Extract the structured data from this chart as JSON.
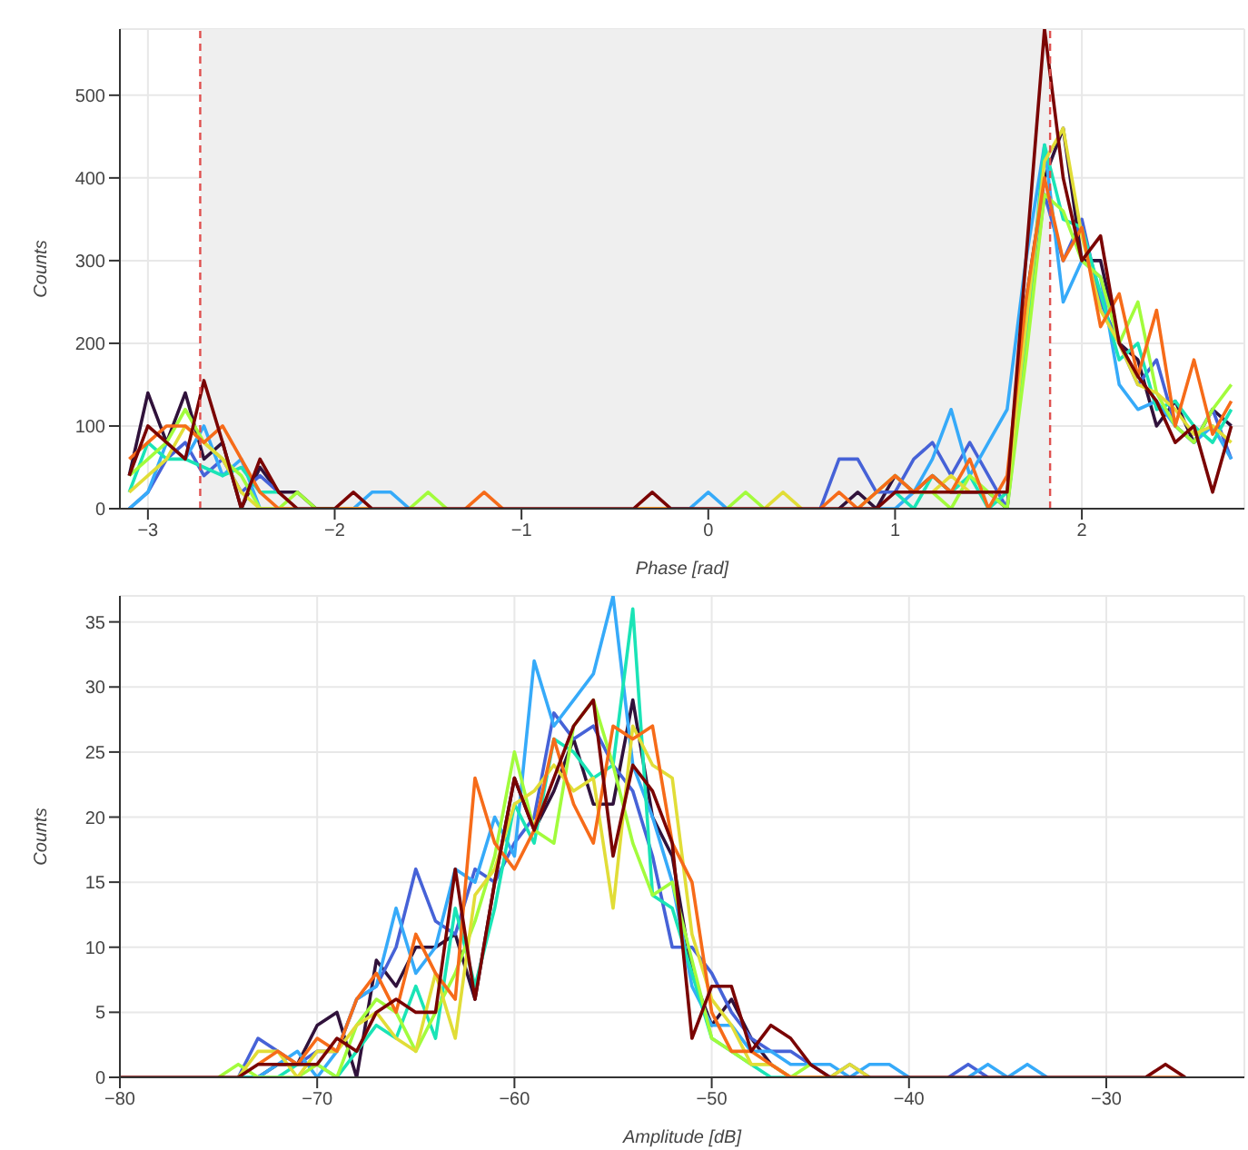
{
  "chart_data": [
    {
      "type": "line",
      "xlabel": "Phase [rad]",
      "ylabel": "Counts",
      "xlim": [
        -3.15,
        2.87
      ],
      "ylim": [
        0,
        580
      ],
      "xticks": [
        -3,
        -2,
        -1,
        0,
        1,
        2
      ],
      "yticks": [
        0,
        100,
        200,
        300,
        400,
        500
      ],
      "grid": true,
      "bands": [
        {
          "axis": "x",
          "from": -2.72,
          "to": 1.83,
          "color": "#efefef"
        }
      ],
      "ref_lines": [
        {
          "axis": "x",
          "value": -2.72,
          "color": "#e0504f",
          "line_style": "dashed"
        },
        {
          "axis": "x",
          "value": 1.83,
          "color": "#e0504f",
          "line_style": "dashed"
        }
      ],
      "x": [
        -3.1,
        -3.0,
        -2.9,
        -2.8,
        -2.7,
        -2.6,
        -2.5,
        -2.4,
        -2.3,
        -2.2,
        -2.1,
        -2.0,
        -1.9,
        -1.8,
        -1.7,
        -1.6,
        -1.5,
        -1.4,
        -1.3,
        -1.2,
        -1.1,
        -1.0,
        -0.9,
        -0.8,
        -0.7,
        -0.6,
        -0.5,
        -0.4,
        -0.3,
        -0.2,
        -0.1,
        0.0,
        0.1,
        0.2,
        0.3,
        0.4,
        0.5,
        0.6,
        0.7,
        0.8,
        0.9,
        1.0,
        1.1,
        1.2,
        1.3,
        1.4,
        1.5,
        1.6,
        1.7,
        1.8,
        1.9,
        2.0,
        2.1,
        2.2,
        2.3,
        2.4,
        2.5,
        2.6,
        2.7,
        2.8
      ],
      "series": [
        {
          "color": "#30123b",
          "values": [
            40,
            140,
            80,
            140,
            60,
            80,
            0,
            50,
            20,
            20,
            0,
            0,
            0,
            0,
            null,
            null,
            null,
            null,
            null,
            null,
            null,
            null,
            null,
            null,
            null,
            null,
            null,
            0,
            0,
            0,
            null,
            null,
            null,
            null,
            null,
            null,
            null,
            null,
            0,
            20,
            0,
            40,
            20,
            40,
            20,
            20,
            20,
            0,
            250,
            400,
            460,
            300,
            300,
            200,
            180,
            100,
            130,
            80,
            120,
            100
          ]
        },
        {
          "color": "#4662d7",
          "values": [
            0,
            20,
            60,
            80,
            40,
            60,
            20,
            40,
            20,
            null,
            null,
            0,
            0,
            0,
            null,
            null,
            null,
            null,
            null,
            null,
            null,
            null,
            null,
            null,
            null,
            null,
            null,
            0,
            0,
            0,
            null,
            null,
            null,
            null,
            null,
            null,
            null,
            0,
            60,
            60,
            20,
            20,
            60,
            80,
            40,
            80,
            40,
            0,
            200,
            380,
            300,
            350,
            250,
            200,
            150,
            180,
            100,
            80,
            120,
            60
          ]
        },
        {
          "color": "#36aaf9",
          "values": [
            0,
            20,
            80,
            60,
            100,
            40,
            60,
            0,
            0,
            0,
            null,
            0,
            0,
            20,
            20,
            0,
            null,
            null,
            null,
            null,
            null,
            null,
            null,
            null,
            null,
            null,
            null,
            0,
            0,
            0,
            0,
            20,
            0,
            null,
            null,
            null,
            null,
            null,
            null,
            null,
            0,
            0,
            20,
            60,
            120,
            40,
            80,
            120,
            300,
            440,
            250,
            300,
            280,
            150,
            120,
            130,
            100,
            80,
            100,
            60
          ]
        },
        {
          "color": "#1ae4b6",
          "values": [
            20,
            80,
            60,
            60,
            50,
            40,
            50,
            20,
            20,
            null,
            null,
            0,
            0,
            0,
            null,
            null,
            null,
            null,
            null,
            null,
            null,
            null,
            null,
            null,
            null,
            null,
            null,
            0,
            0,
            0,
            null,
            null,
            null,
            null,
            null,
            null,
            null,
            null,
            null,
            null,
            null,
            20,
            0,
            40,
            20,
            40,
            0,
            20,
            200,
            440,
            350,
            340,
            260,
            180,
            200,
            120,
            130,
            100,
            80,
            120
          ]
        },
        {
          "color": "#a2fc3c",
          "values": [
            40,
            60,
            80,
            120,
            80,
            60,
            40,
            0,
            0,
            20,
            0,
            0,
            0,
            0,
            null,
            0,
            20,
            0,
            null,
            null,
            null,
            null,
            null,
            null,
            null,
            null,
            null,
            0,
            0,
            0,
            null,
            null,
            0,
            20,
            0,
            null,
            null,
            null,
            null,
            0,
            20,
            40,
            20,
            20,
            0,
            40,
            20,
            0,
            180,
            380,
            360,
            300,
            280,
            200,
            250,
            140,
            100,
            80,
            120,
            150
          ]
        },
        {
          "color": "#e1dd37",
          "values": [
            20,
            40,
            60,
            100,
            80,
            60,
            20,
            0,
            0,
            0,
            null,
            0,
            0,
            0,
            null,
            null,
            null,
            null,
            null,
            null,
            null,
            null,
            null,
            null,
            null,
            null,
            null,
            0,
            0,
            0,
            null,
            null,
            null,
            null,
            0,
            20,
            0,
            null,
            null,
            null,
            null,
            null,
            null,
            20,
            40,
            20,
            null,
            20,
            220,
            420,
            460,
            330,
            240,
            200,
            150,
            140,
            120,
            90,
            100,
            80
          ]
        },
        {
          "color": "#f66b19",
          "values": [
            60,
            80,
            100,
            100,
            80,
            100,
            60,
            20,
            0,
            0,
            null,
            0,
            0,
            0,
            null,
            null,
            null,
            null,
            0,
            20,
            0,
            null,
            null,
            null,
            null,
            null,
            null,
            0,
            0,
            0,
            null,
            null,
            null,
            null,
            null,
            null,
            null,
            0,
            20,
            0,
            20,
            40,
            20,
            40,
            20,
            60,
            0,
            40,
            250,
            400,
            300,
            340,
            220,
            260,
            160,
            240,
            100,
            180,
            90,
            130
          ]
        },
        {
          "color": "#7a0403",
          "values": [
            40,
            100,
            80,
            60,
            155,
            80,
            0,
            60,
            20,
            0,
            0,
            0,
            20,
            0,
            0,
            0,
            0,
            0,
            0,
            0,
            0,
            0,
            0,
            0,
            0,
            0,
            0,
            0,
            20,
            0,
            0,
            0,
            0,
            0,
            0,
            0,
            0,
            0,
            0,
            0,
            0,
            20,
            20,
            20,
            20,
            20,
            20,
            20,
            300,
            580,
            400,
            300,
            330,
            200,
            160,
            130,
            80,
            100,
            20,
            100
          ]
        }
      ]
    },
    {
      "type": "line",
      "xlabel": "Amplitude [dB]",
      "ylabel": "Counts",
      "xlim": [
        -80,
        -23
      ],
      "ylim": [
        0,
        37
      ],
      "xticks": [
        -80,
        -70,
        -60,
        -50,
        -40,
        -30
      ],
      "yticks": [
        0,
        5,
        10,
        15,
        20,
        25,
        30,
        35
      ],
      "grid": true,
      "x": [
        -80,
        -79,
        -78,
        -77,
        -76,
        -75,
        -74,
        -73,
        -72,
        -71,
        -70,
        -69,
        -68,
        -67,
        -66,
        -65,
        -64,
        -63,
        -62,
        -61,
        -60,
        -59,
        -58,
        -57,
        -56,
        -55,
        -54,
        -53,
        -52,
        -51,
        -50,
        -49,
        -48,
        -47,
        -46,
        -45,
        -44,
        -43,
        -42,
        -41,
        -40,
        -39,
        -38,
        -37,
        -36,
        -35,
        -34,
        -33,
        -32,
        -31,
        -30,
        -29,
        -28,
        -27,
        -26
      ],
      "series": [
        {
          "color": "#30123b",
          "values": [
            null,
            null,
            null,
            null,
            null,
            null,
            0,
            0,
            1,
            1,
            4,
            5,
            0,
            9,
            7,
            10,
            10,
            11,
            6,
            15,
            23,
            19,
            22,
            26,
            21,
            21,
            29,
            20,
            17,
            8,
            4,
            6,
            3,
            1,
            0,
            0,
            0,
            null,
            null,
            null,
            null,
            null,
            null,
            null,
            null,
            null,
            null,
            null,
            null,
            null,
            null,
            null,
            null,
            null,
            null
          ]
        },
        {
          "color": "#4662d7",
          "values": [
            null,
            null,
            null,
            null,
            null,
            null,
            0,
            3,
            2,
            1,
            2,
            2,
            6,
            7,
            10,
            16,
            12,
            11,
            16,
            15,
            18,
            20,
            28,
            26,
            27,
            24,
            22,
            17,
            10,
            10,
            8,
            5,
            3,
            2,
            2,
            1,
            0,
            1,
            0,
            null,
            null,
            null,
            0,
            1,
            0,
            null,
            null,
            null,
            null,
            null,
            null,
            null,
            null,
            null,
            null
          ]
        },
        {
          "color": "#36aaf9",
          "values": [
            null,
            null,
            null,
            null,
            null,
            null,
            0,
            0,
            1,
            2,
            0,
            2,
            6,
            7,
            13,
            8,
            10,
            16,
            15,
            20,
            17,
            32,
            27,
            29,
            31,
            37,
            24,
            20,
            15,
            7,
            4,
            4,
            2,
            2,
            1,
            1,
            1,
            0,
            1,
            1,
            0,
            null,
            null,
            0,
            1,
            0,
            1,
            0,
            null,
            null,
            null,
            null,
            null,
            null,
            null
          ]
        },
        {
          "color": "#1ae4b6",
          "values": [
            null,
            null,
            null,
            null,
            null,
            null,
            0,
            0,
            0,
            1,
            1,
            0,
            2,
            4,
            3,
            7,
            3,
            13,
            7,
            13,
            21,
            18,
            26,
            25,
            23,
            24,
            36,
            14,
            13,
            8,
            3,
            2,
            1,
            0,
            0,
            0,
            null,
            null,
            null,
            null,
            null,
            null,
            null,
            null,
            null,
            null,
            null,
            null,
            null,
            null,
            null,
            null,
            null,
            null,
            null
          ]
        },
        {
          "color": "#a2fc3c",
          "values": [
            null,
            null,
            null,
            null,
            null,
            0,
            1,
            0,
            0,
            0,
            1,
            0,
            4,
            6,
            5,
            2,
            5,
            8,
            12,
            17,
            25,
            19,
            18,
            27,
            29,
            24,
            18,
            14,
            15,
            9,
            3,
            2,
            1,
            1,
            0,
            1,
            null,
            null,
            null,
            null,
            null,
            null,
            null,
            null,
            null,
            null,
            null,
            null,
            null,
            null,
            null,
            null,
            null,
            null,
            null
          ]
        },
        {
          "color": "#e1dd37",
          "values": [
            null,
            null,
            null,
            null,
            null,
            null,
            0,
            2,
            2,
            0,
            2,
            2,
            4,
            5,
            3,
            2,
            8,
            3,
            14,
            16,
            21,
            22,
            24,
            22,
            23,
            13,
            27,
            24,
            23,
            11,
            6,
            4,
            1,
            1,
            0,
            0,
            0,
            1,
            0,
            null,
            null,
            null,
            null,
            null,
            null,
            null,
            null,
            null,
            null,
            null,
            null,
            null,
            null,
            null,
            null
          ]
        },
        {
          "color": "#f66b19",
          "values": [
            null,
            null,
            null,
            null,
            null,
            null,
            null,
            1,
            2,
            1,
            3,
            2,
            6,
            8,
            5,
            11,
            8,
            6,
            23,
            18,
            16,
            19,
            26,
            21,
            18,
            27,
            26,
            27,
            18,
            15,
            5,
            2,
            2,
            1,
            0,
            0,
            0,
            null,
            null,
            null,
            null,
            null,
            null,
            null,
            null,
            null,
            null,
            null,
            null,
            null,
            null,
            null,
            0,
            0,
            0
          ]
        },
        {
          "color": "#7a0403",
          "values": [
            0,
            0,
            0,
            0,
            0,
            0,
            0,
            1,
            1,
            1,
            1,
            3,
            2,
            5,
            6,
            5,
            5,
            16,
            6,
            15,
            23,
            19,
            23,
            27,
            29,
            17,
            24,
            22,
            18,
            3,
            7,
            7,
            2,
            4,
            3,
            1,
            0,
            0,
            0,
            0,
            0,
            0,
            0,
            0,
            0,
            0,
            0,
            0,
            0,
            0,
            0,
            0,
            0,
            1,
            0
          ]
        }
      ]
    }
  ]
}
